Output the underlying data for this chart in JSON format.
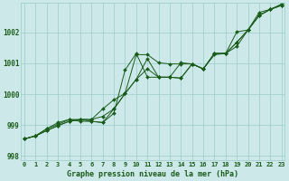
{
  "xlabel": "Graphe pression niveau de la mer (hPa)",
  "x": [
    0,
    1,
    2,
    3,
    4,
    5,
    6,
    7,
    8,
    9,
    10,
    11,
    12,
    13,
    14,
    15,
    16,
    17,
    18,
    19,
    20,
    21,
    22,
    23
  ],
  "line1": [
    998.55,
    998.65,
    998.82,
    998.98,
    999.12,
    999.18,
    999.12,
    999.08,
    999.52,
    1000.02,
    1000.48,
    1001.15,
    1000.55,
    1000.55,
    1000.52,
    1000.98,
    1000.82,
    1001.28,
    1001.32,
    1001.55,
    1002.08,
    1002.55,
    1002.75,
    1002.88
  ],
  "line2": [
    998.55,
    998.65,
    998.82,
    998.98,
    999.12,
    999.18,
    999.18,
    999.28,
    999.52,
    1000.02,
    1000.48,
    1000.82,
    1000.55,
    1000.55,
    1000.52,
    1000.98,
    1000.82,
    1001.32,
    1001.32,
    1001.68,
    1002.08,
    1002.55,
    1002.75,
    1002.92
  ],
  "line3": [
    998.55,
    998.65,
    998.88,
    999.02,
    999.18,
    999.18,
    999.18,
    999.52,
    999.82,
    1000.02,
    1001.28,
    1001.28,
    1001.02,
    1000.98,
    1000.98,
    1000.98,
    1000.82,
    1001.32,
    1001.32,
    1001.68,
    1002.08,
    1002.55,
    1002.75,
    1002.88
  ],
  "line4": [
    998.55,
    998.65,
    998.88,
    999.08,
    999.18,
    999.12,
    999.12,
    999.08,
    999.38,
    1000.78,
    1001.32,
    1000.55,
    1000.55,
    1000.55,
    1001.02,
    1000.98,
    1000.82,
    1001.32,
    1001.32,
    1002.02,
    1002.08,
    1002.65,
    1002.75,
    1002.88
  ],
  "ylim": [
    997.85,
    1002.95
  ],
  "yticks": [
    998,
    999,
    1000,
    1001,
    1002
  ],
  "xticks": [
    0,
    1,
    2,
    3,
    4,
    5,
    6,
    7,
    8,
    9,
    10,
    11,
    12,
    13,
    14,
    15,
    16,
    17,
    18,
    19,
    20,
    21,
    22,
    23
  ],
  "bg_color": "#cce8e8",
  "grid_color": "#99cccc",
  "line_color": "#1a5c1a",
  "fig_bg": "#cce8e8",
  "tick_fontsize": 5.0,
  "label_fontsize": 6.0
}
